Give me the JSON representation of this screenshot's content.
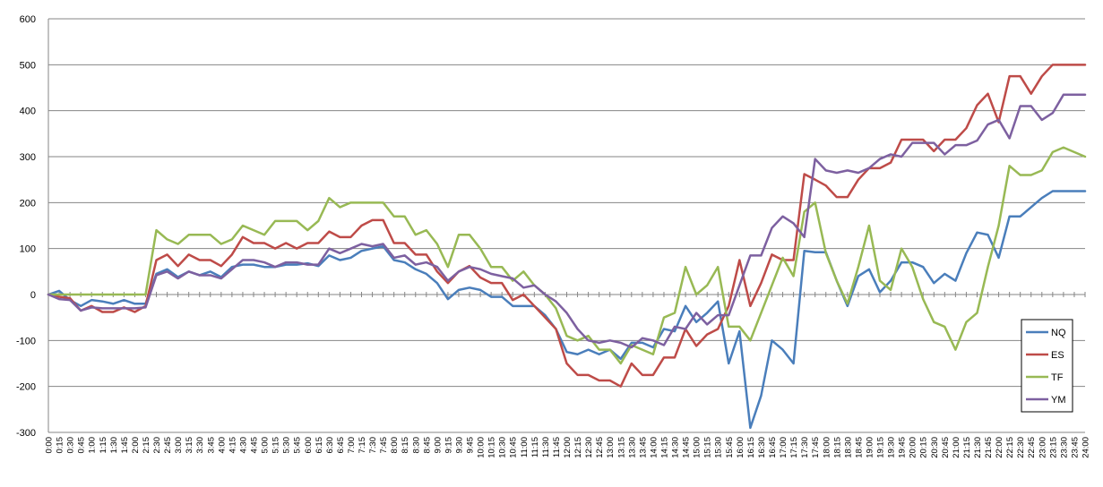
{
  "chart_data": {
    "type": "line",
    "ylim": [
      -300,
      600
    ],
    "yticks": [
      -300,
      -200,
      -100,
      0,
      100,
      200,
      300,
      400,
      500,
      600
    ],
    "grid": "horizontal",
    "legend_position": "right",
    "x": [
      "0:00",
      "0:15",
      "0:30",
      "0:45",
      "1:00",
      "1:15",
      "1:30",
      "1:45",
      "2:00",
      "2:15",
      "2:30",
      "2:45",
      "3:00",
      "3:15",
      "3:30",
      "3:45",
      "4:00",
      "4:15",
      "4:30",
      "4:45",
      "5:00",
      "5:15",
      "5:30",
      "5:45",
      "6:00",
      "6:15",
      "6:30",
      "6:45",
      "7:00",
      "7:15",
      "7:30",
      "7:45",
      "8:00",
      "8:15",
      "8:30",
      "8:45",
      "9:00",
      "9:15",
      "9:30",
      "9:45",
      "10:00",
      "10:15",
      "10:30",
      "10:45",
      "11:00",
      "11:15",
      "11:30",
      "11:45",
      "12:00",
      "12:15",
      "12:30",
      "12:45",
      "13:00",
      "13:15",
      "13:30",
      "13:45",
      "14:00",
      "14:15",
      "14:30",
      "14:45",
      "15:00",
      "15:15",
      "15:30",
      "15:45",
      "16:00",
      "16:15",
      "16:30",
      "16:45",
      "17:00",
      "17:15",
      "17:30",
      "17:45",
      "18:00",
      "18:15",
      "18:30",
      "18:45",
      "19:00",
      "19:15",
      "19:30",
      "19:45",
      "20:00",
      "20:15",
      "20:30",
      "20:45",
      "21:00",
      "21:15",
      "21:30",
      "21:45",
      "22:00",
      "22:15",
      "22:30",
      "22:45",
      "23:00",
      "23:15",
      "23:30",
      "23:45",
      "24:00"
    ],
    "series": [
      {
        "name": "NQ",
        "color": "#4a7ebb",
        "values": [
          0,
          8,
          -12,
          -25,
          -12,
          -15,
          -20,
          -12,
          -20,
          -20,
          45,
          55,
          38,
          50,
          42,
          50,
          38,
          60,
          65,
          65,
          60,
          60,
          65,
          65,
          68,
          62,
          85,
          75,
          80,
          95,
          100,
          105,
          75,
          70,
          55,
          45,
          25,
          -10,
          10,
          15,
          10,
          -5,
          -5,
          -25,
          -25,
          -25,
          -45,
          -75,
          -125,
          -130,
          -120,
          -130,
          -120,
          -140,
          -105,
          -105,
          -115,
          -75,
          -80,
          -25,
          -60,
          -40,
          -15,
          -150,
          -80,
          -290,
          -220,
          -100,
          -120,
          -150,
          95,
          92,
          92,
          30,
          -25,
          40,
          55,
          5,
          30,
          70,
          70,
          60,
          25,
          45,
          30,
          90,
          135,
          130,
          80,
          170,
          170,
          190,
          210,
          225,
          225,
          225,
          225
        ]
      },
      {
        "name": "ES",
        "color": "#be4b48",
        "values": [
          0,
          -5,
          -8,
          -35,
          -25,
          -38,
          -38,
          -28,
          -38,
          -25,
          75,
          87,
          62,
          87,
          75,
          75,
          62,
          87,
          125,
          112,
          112,
          100,
          112,
          100,
          112,
          112,
          137,
          125,
          125,
          150,
          162,
          162,
          112,
          112,
          87,
          87,
          50,
          25,
          50,
          62,
          37,
          25,
          25,
          -12,
          0,
          -25,
          -50,
          -75,
          -150,
          -175,
          -175,
          -187,
          -187,
          -200,
          -150,
          -175,
          -175,
          -137,
          -137,
          -75,
          -112,
          -87,
          -75,
          -25,
          75,
          -25,
          25,
          87,
          75,
          75,
          262,
          250,
          237,
          212,
          212,
          250,
          275,
          275,
          287,
          337,
          337,
          337,
          312,
          337,
          337,
          362,
          412,
          437,
          375,
          475,
          475,
          437,
          475,
          500,
          500,
          500,
          500
        ]
      },
      {
        "name": "TF",
        "color": "#98b954",
        "values": [
          0,
          0,
          0,
          0,
          0,
          0,
          0,
          0,
          0,
          0,
          140,
          120,
          110,
          130,
          130,
          130,
          110,
          120,
          150,
          140,
          130,
          160,
          160,
          160,
          140,
          160,
          210,
          190,
          200,
          200,
          200,
          200,
          170,
          170,
          130,
          140,
          110,
          60,
          130,
          130,
          100,
          60,
          60,
          30,
          50,
          20,
          0,
          -30,
          -90,
          -100,
          -90,
          -120,
          -120,
          -150,
          -110,
          -120,
          -130,
          -50,
          -40,
          60,
          0,
          20,
          60,
          -70,
          -70,
          -100,
          -40,
          20,
          80,
          40,
          180,
          200,
          90,
          30,
          -20,
          60,
          150,
          30,
          10,
          100,
          60,
          -10,
          -60,
          -70,
          -120,
          -60,
          -40,
          60,
          150,
          280,
          260,
          260,
          270,
          310,
          320,
          310,
          300
        ]
      },
      {
        "name": "YM",
        "color": "#7d60a0",
        "values": [
          0,
          -10,
          -12,
          -35,
          -28,
          -30,
          -30,
          -30,
          -30,
          -28,
          42,
          50,
          35,
          50,
          42,
          42,
          35,
          55,
          75,
          75,
          70,
          60,
          70,
          70,
          65,
          65,
          100,
          90,
          100,
          110,
          105,
          110,
          80,
          85,
          65,
          70,
          60,
          30,
          50,
          60,
          55,
          45,
          40,
          35,
          15,
          20,
          0,
          -15,
          -40,
          -75,
          -100,
          -105,
          -100,
          -105,
          -115,
          -95,
          -100,
          -110,
          -70,
          -75,
          -40,
          -65,
          -45,
          -45,
          20,
          85,
          85,
          145,
          170,
          155,
          125,
          295,
          270,
          265,
          270,
          265,
          275,
          295,
          305,
          300,
          330,
          330,
          330,
          305,
          325,
          325,
          335,
          370,
          380,
          340,
          410,
          410,
          380,
          395,
          435,
          435,
          435
        ]
      }
    ]
  }
}
